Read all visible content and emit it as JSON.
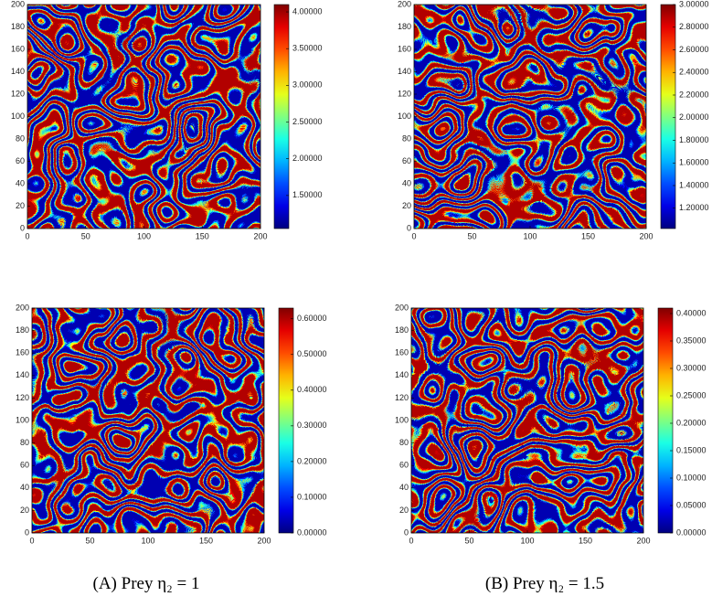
{
  "chart_data": [
    {
      "type": "heatmap",
      "xlim": [
        0,
        200
      ],
      "ylim": [
        0,
        200
      ],
      "xticks": [
        0,
        50,
        100,
        150,
        200
      ],
      "yticks": [
        0,
        20,
        40,
        60,
        80,
        100,
        120,
        140,
        160,
        180,
        200
      ],
      "clim": [
        1.05,
        4.1
      ],
      "cticks": [
        {
          "value": 1.5,
          "label": "1.50000"
        },
        {
          "value": 2,
          "label": "2.00000"
        },
        {
          "value": 2.5,
          "label": "2.50000"
        },
        {
          "value": 3,
          "label": "3.00000"
        },
        {
          "value": 3.5,
          "label": "3.50000"
        },
        {
          "value": 4,
          "label": "4.00000"
        }
      ]
    },
    {
      "type": "heatmap",
      "xlim": [
        0,
        200
      ],
      "ylim": [
        0,
        200
      ],
      "xticks": [
        0,
        50,
        100,
        150,
        200
      ],
      "yticks": [
        0,
        20,
        40,
        60,
        80,
        100,
        120,
        140,
        160,
        180,
        200
      ],
      "clim": [
        1.02,
        3.0
      ],
      "cticks": [
        {
          "value": 1.2,
          "label": "1.20000"
        },
        {
          "value": 1.4,
          "label": "1.40000"
        },
        {
          "value": 1.6,
          "label": "1.60000"
        },
        {
          "value": 1.8,
          "label": "1.80000"
        },
        {
          "value": 2,
          "label": "2.00000"
        },
        {
          "value": 2.2,
          "label": "2.20000"
        },
        {
          "value": 2.4,
          "label": "2.40000"
        },
        {
          "value": 2.6,
          "label": "2.60000"
        },
        {
          "value": 2.8,
          "label": "2.80000"
        },
        {
          "value": 3,
          "label": "3.00000"
        }
      ]
    },
    {
      "type": "heatmap",
      "xlim": [
        0,
        200
      ],
      "ylim": [
        0,
        200
      ],
      "xticks": [
        0,
        50,
        100,
        150,
        200
      ],
      "yticks": [
        0,
        20,
        40,
        60,
        80,
        100,
        120,
        140,
        160,
        180,
        200
      ],
      "clim": [
        0,
        0.63
      ],
      "cticks": [
        {
          "value": 0,
          "label": "0.00000"
        },
        {
          "value": 0.1,
          "label": "0.10000"
        },
        {
          "value": 0.2,
          "label": "0.20000"
        },
        {
          "value": 0.3,
          "label": "0.30000"
        },
        {
          "value": 0.4,
          "label": "0.40000"
        },
        {
          "value": 0.5,
          "label": "0.50000"
        },
        {
          "value": 0.6,
          "label": "0.60000"
        }
      ]
    },
    {
      "type": "heatmap",
      "xlim": [
        0,
        200
      ],
      "ylim": [
        0,
        200
      ],
      "xticks": [
        0,
        50,
        100,
        150,
        200
      ],
      "yticks": [
        0,
        20,
        40,
        60,
        80,
        100,
        120,
        140,
        160,
        180,
        200
      ],
      "clim": [
        0,
        0.41
      ],
      "cticks": [
        {
          "value": 0,
          "label": "0.00000"
        },
        {
          "value": 0.05,
          "label": "0.05000"
        },
        {
          "value": 0.1,
          "label": "0.10000"
        },
        {
          "value": 0.15,
          "label": "0.15000"
        },
        {
          "value": 0.2,
          "label": "0.20000"
        },
        {
          "value": 0.25,
          "label": "0.25000"
        },
        {
          "value": 0.3,
          "label": "0.30000"
        },
        {
          "value": 0.35,
          "label": "0.35000"
        },
        {
          "value": 0.4,
          "label": "0.40000"
        }
      ]
    }
  ],
  "captions": [
    "(A) Prey η₂ = 1",
    "(B) Prey η₂ = 1.5"
  ]
}
